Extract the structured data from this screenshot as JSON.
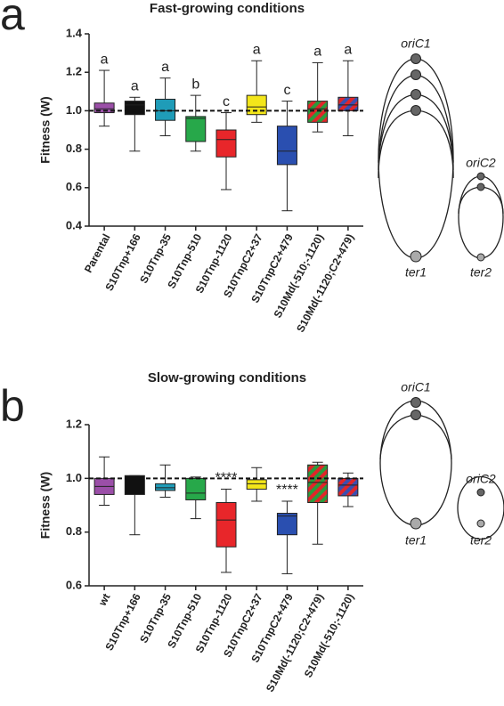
{
  "panels": [
    {
      "label": "a",
      "replicons": [
        {
          "origin": "oriC1",
          "terminus": "ter1"
        },
        {
          "origin": "oriC2",
          "terminus": "ter2"
        }
      ]
    },
    {
      "label": "b",
      "replicons": [
        {
          "origin": "oriC1",
          "terminus": "ter1"
        },
        {
          "origin": "oriC2",
          "terminus": "ter2"
        }
      ]
    }
  ],
  "chart_data": [
    {
      "type": "box",
      "title": "Fast-growing conditions",
      "ylabel": "Fitness (W)",
      "categories": [
        "Parental",
        "S10Tnp+166",
        "S10Tnp-35",
        "S10Tnp-510",
        "S10Tnp-1120",
        "S10TnpC2+37",
        "S10TnpC2+479",
        "S10Md(-510;-1120)",
        "S10Md(-1120;C2+479)"
      ],
      "min": [
        0.92,
        0.79,
        0.87,
        0.79,
        0.59,
        0.94,
        0.48,
        0.89,
        0.87
      ],
      "q1": [
        0.99,
        0.98,
        0.95,
        0.84,
        0.76,
        0.98,
        0.72,
        0.94,
        1.0
      ],
      "median": [
        1.01,
        1.03,
        1.0,
        0.96,
        0.85,
        1.02,
        0.79,
        1.01,
        1.03
      ],
      "q3": [
        1.04,
        1.05,
        1.06,
        0.97,
        0.9,
        1.08,
        0.92,
        1.05,
        1.07
      ],
      "max": [
        1.21,
        1.07,
        1.17,
        1.08,
        0.99,
        1.26,
        1.05,
        1.25,
        1.26
      ],
      "colors": [
        "#9b4fa8",
        "#111111",
        "#1f9cb8",
        "#27a84a",
        "#e8262a",
        "#f3e61a",
        "#2a4fb0",
        [
          "#2a9a3c",
          "#e0262a"
        ],
        [
          "#e0262a",
          "#3a4fb0"
        ]
      ],
      "annotations": [
        "a",
        "a",
        "a",
        "b",
        "c",
        "a",
        "c",
        "a",
        "a"
      ],
      "reference_line": 1,
      "ylim": [
        0.4,
        1.4
      ],
      "yticks": [
        0.4,
        0.6,
        0.8,
        {
          "value": 1,
          "label": "1.0"
        },
        1.2,
        1.4
      ]
    },
    {
      "type": "box",
      "title": "Slow-growing conditions",
      "ylabel": "Fitness (W)",
      "categories": [
        "wt",
        "S10Tnp+166",
        "S10Tnp-35",
        "S10Tnp-510",
        "S10Tnp-1120",
        "S10TnpC2+37",
        "S10TnpC2+479",
        "S10Md(-1120;C2+479)",
        "S10Md(-510;-1120)"
      ],
      "min": [
        0.9,
        0.79,
        0.93,
        0.85,
        0.65,
        0.915,
        0.645,
        0.755,
        0.895
      ],
      "q1": [
        0.94,
        0.94,
        0.955,
        0.92,
        0.745,
        0.96,
        0.79,
        0.91,
        0.935
      ],
      "median": [
        0.97,
        1.01,
        0.965,
        0.945,
        0.845,
        0.98,
        0.86,
        0.985,
        0.975
      ],
      "q3": [
        1.0,
        1.01,
        0.98,
        1.0,
        0.91,
        0.995,
        0.87,
        1.05,
        1.0
      ],
      "max": [
        1.08,
        1.01,
        1.05,
        1.005,
        0.96,
        1.04,
        0.915,
        1.06,
        1.02
      ],
      "colors": [
        "#9b4fa8",
        "#111111",
        "#1f9cb8",
        "#27a84a",
        "#e8262a",
        "#f3e61a",
        "#2a4fb0",
        [
          "#2a9a3c",
          "#e0262a"
        ],
        [
          "#e0262a",
          "#3a4fb0"
        ]
      ],
      "annotations": [
        null,
        null,
        null,
        null,
        "****",
        null,
        "****",
        null,
        null
      ],
      "reference_line": 1,
      "ylim": [
        0.6,
        1.2
      ],
      "yticks": [
        0.6,
        0.8,
        {
          "value": 1,
          "label": "1.0"
        },
        1.2
      ]
    }
  ]
}
